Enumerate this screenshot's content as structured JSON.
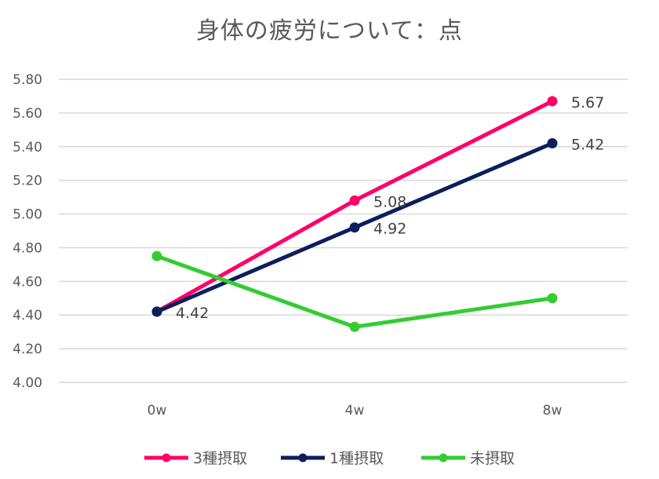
{
  "chart_data": {
    "type": "line",
    "title": "身体の疲労について：点",
    "categories": [
      "0w",
      "4w",
      "8w"
    ],
    "ylim": [
      4.0,
      5.8
    ],
    "yticks": [
      "4.00",
      "4.20",
      "4.40",
      "4.60",
      "4.80",
      "5.00",
      "5.20",
      "5.40",
      "5.60",
      "5.80"
    ],
    "grid": true,
    "legend_position": "bottom",
    "series": [
      {
        "name": "3種摂取",
        "color": "#ff0066",
        "values": [
          4.42,
          5.08,
          5.67
        ],
        "labels": [
          "",
          "5.08",
          "5.67"
        ]
      },
      {
        "name": "1種摂取",
        "color": "#0c1f5c",
        "values": [
          4.42,
          4.92,
          5.42
        ],
        "labels": [
          "4.42",
          "4.92",
          "5.42"
        ]
      },
      {
        "name": "未摂取",
        "color": "#33cc33",
        "values": [
          4.75,
          4.33,
          4.5
        ],
        "labels": [
          "",
          "",
          ""
        ]
      }
    ]
  }
}
